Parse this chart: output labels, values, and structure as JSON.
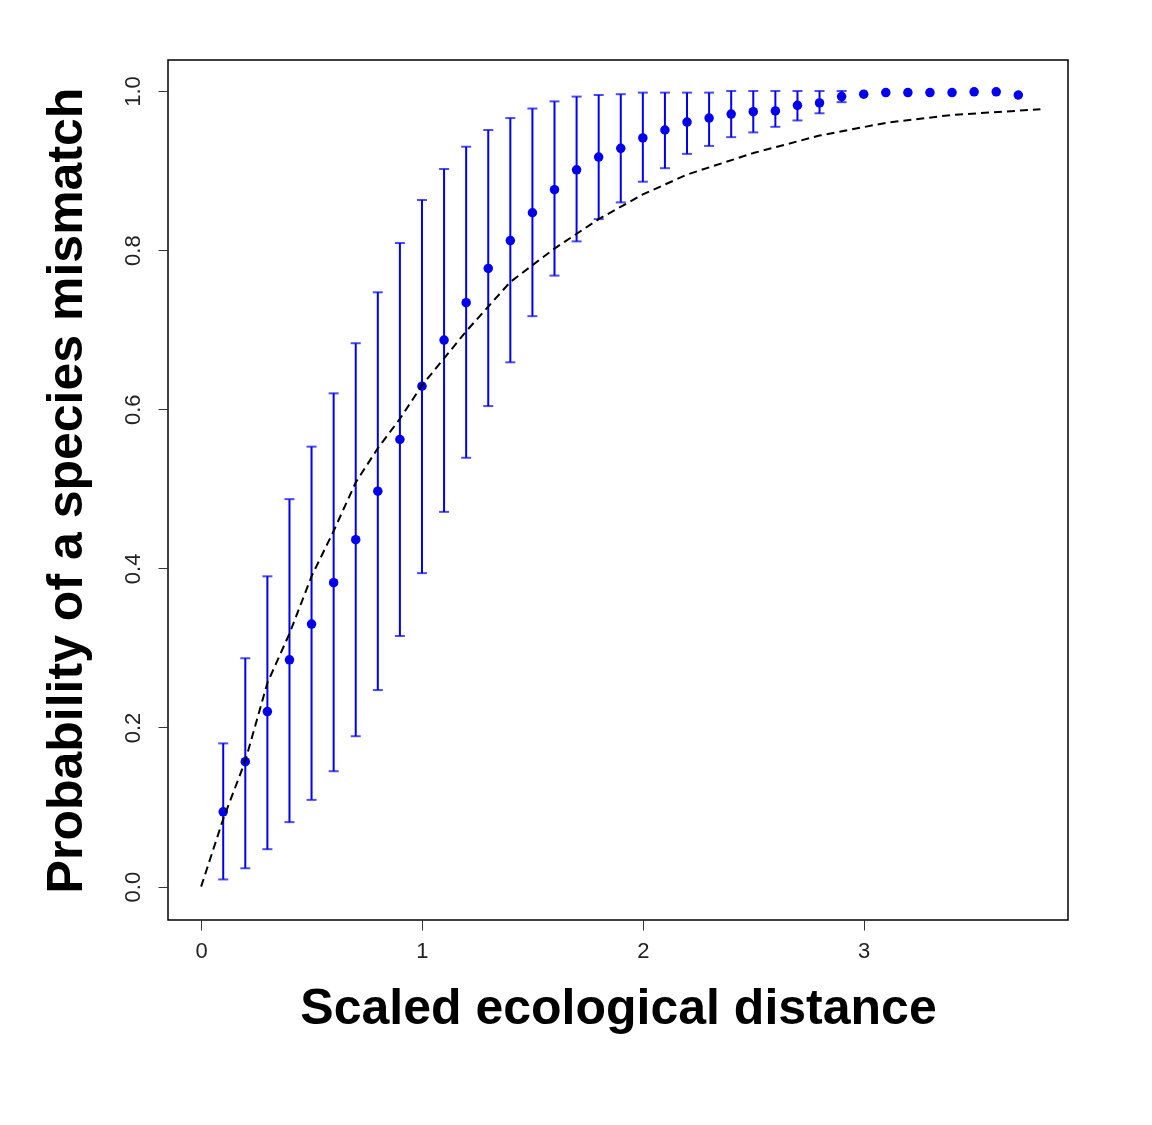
{
  "chart_data": {
    "type": "scatter",
    "xlabel": "Scaled ecological distance",
    "ylabel": "Probability of a species mismatch",
    "xlim": [
      -0.15,
      3.925
    ],
    "ylim": [
      -0.042,
      1.039
    ],
    "xticks": [
      0,
      1,
      2,
      3
    ],
    "yticks": [
      {
        "value": 0,
        "label": "0.0"
      },
      {
        "value": 0.2,
        "label": "0.2"
      },
      {
        "value": 0.4,
        "label": "0.4"
      },
      {
        "value": 0.6,
        "label": "0.6"
      },
      {
        "value": 0.8,
        "label": "0.8"
      },
      {
        "value": 1,
        "label": "1.0"
      }
    ],
    "grid": false,
    "series": [
      {
        "marker": "circle",
        "color": "#0000ee",
        "x": [
          0.1,
          0.2,
          0.3,
          0.4,
          0.5,
          0.6,
          0.7,
          0.8,
          0.9,
          1.0,
          1.1,
          1.2,
          1.3,
          1.4,
          1.5,
          1.6,
          1.7,
          1.8,
          1.9,
          2.0,
          2.1,
          2.2,
          2.3,
          2.4,
          2.5,
          2.6,
          2.7,
          2.8,
          2.9,
          3.0,
          3.1,
          3.2,
          3.3,
          3.4,
          3.5,
          3.6,
          3.7
        ],
        "values": [
          0.094,
          0.157,
          0.22,
          0.285,
          0.33,
          0.382,
          0.436,
          0.497,
          0.562,
          0.629,
          0.687,
          0.734,
          0.777,
          0.812,
          0.847,
          0.876,
          0.901,
          0.917,
          0.928,
          0.941,
          0.951,
          0.961,
          0.966,
          0.971,
          0.974,
          0.975,
          0.982,
          0.985,
          0.993,
          0.996,
          0.998,
          0.998,
          0.998,
          0.998,
          0.999,
          0.999,
          0.995
        ],
        "errors": [
          [
            0.009,
            0.18
          ],
          [
            0.023,
            0.287
          ],
          [
            0.047,
            0.39
          ],
          [
            0.081,
            0.487
          ],
          [
            0.109,
            0.553
          ],
          [
            0.145,
            0.62
          ],
          [
            0.189,
            0.683
          ],
          [
            0.247,
            0.747
          ],
          [
            0.315,
            0.809
          ],
          [
            0.394,
            0.863
          ],
          [
            0.471,
            0.902
          ],
          [
            0.539,
            0.93
          ],
          [
            0.604,
            0.951
          ],
          [
            0.659,
            0.966
          ],
          [
            0.717,
            0.978
          ],
          [
            0.768,
            0.987
          ],
          [
            0.811,
            0.993
          ],
          [
            0.839,
            0.995
          ],
          [
            0.86,
            0.996
          ],
          [
            0.886,
            0.998
          ],
          [
            0.903,
            0.998
          ],
          [
            0.921,
            0.998
          ],
          [
            0.931,
            0.998
          ],
          [
            0.942,
            1.0
          ],
          [
            0.948,
            1.0
          ],
          [
            0.955,
            1.0
          ],
          [
            0.963,
            1.0
          ],
          [
            0.972,
            1.0
          ],
          [
            0.986,
            1.0
          ],
          null,
          null,
          null,
          null,
          null,
          null,
          null,
          null
        ]
      },
      {
        "type": "line",
        "line_style": "dashed",
        "color": "#000000",
        "x": [
          0,
          0.1,
          0.2,
          0.3,
          0.4,
          0.5,
          0.6,
          0.7,
          0.8,
          0.9,
          1.0,
          1.2,
          1.4,
          1.6,
          1.8,
          2.0,
          2.2,
          2.5,
          2.8,
          3.1,
          3.4,
          3.8
        ],
        "values": [
          0,
          0.085,
          0.158,
          0.256,
          0.318,
          0.39,
          0.447,
          0.508,
          0.551,
          0.588,
          0.63,
          0.698,
          0.76,
          0.802,
          0.839,
          0.87,
          0.895,
          0.922,
          0.944,
          0.96,
          0.97,
          0.977
        ]
      }
    ]
  }
}
